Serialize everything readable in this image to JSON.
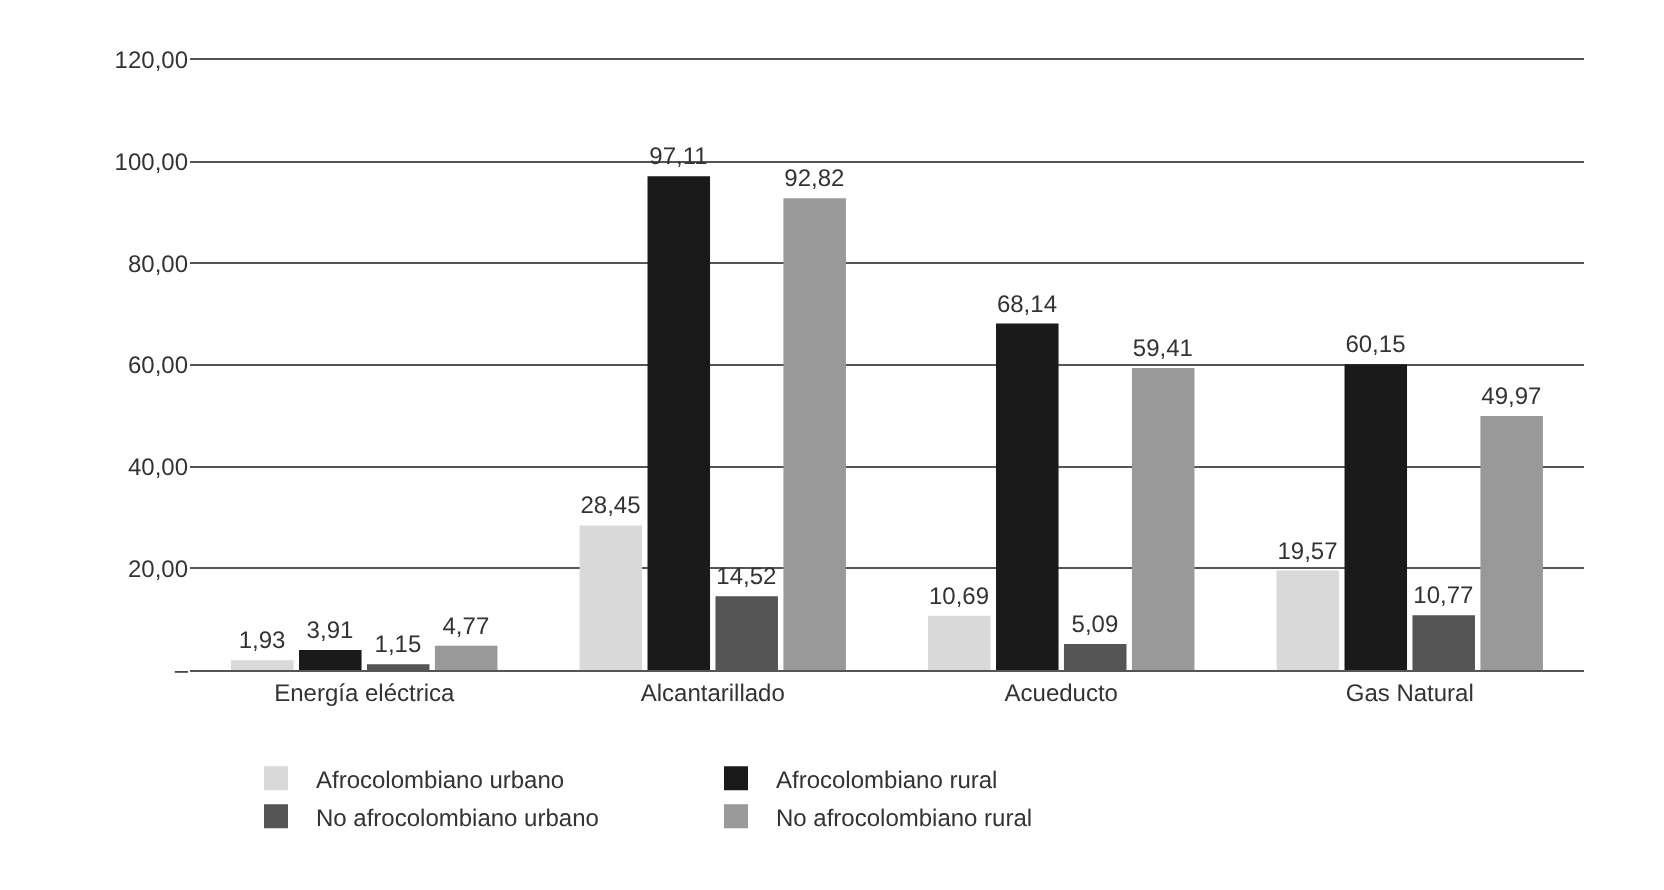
{
  "chart_data": {
    "type": "bar",
    "categories": [
      "Energía eléctrica",
      "Alcantarillado",
      "Acueducto",
      "Gas Natural"
    ],
    "series": [
      {
        "name": "Afrocolombiano urbano",
        "color": "#d9d9d9",
        "values": [
          1.93,
          28.45,
          10.69,
          19.57
        ],
        "value_labels": [
          "1,93",
          "28,45",
          "10,69",
          "19,57"
        ]
      },
      {
        "name": "Afrocolombiano rural",
        "color": "#1a1a1a",
        "values": [
          3.91,
          97.11,
          68.14,
          60.15
        ],
        "value_labels": [
          "3,91",
          "97,11",
          "68,14",
          "60,15"
        ]
      },
      {
        "name": "No afrocolombiano urbano",
        "color": "#555555",
        "values": [
          1.15,
          14.52,
          5.09,
          10.77
        ],
        "value_labels": [
          "1,15",
          "14,52",
          "5,09",
          "10,77"
        ]
      },
      {
        "name": "No afrocolombiano rural",
        "color": "#999999",
        "values": [
          4.77,
          92.82,
          59.41,
          49.97
        ],
        "value_labels": [
          "4,77",
          "92,82",
          "59,41",
          "49,97"
        ]
      }
    ],
    "ylim": [
      0,
      120
    ],
    "yticks": [
      {
        "value": 0,
        "label": "–"
      },
      {
        "value": 20,
        "label": "20,00"
      },
      {
        "value": 40,
        "label": "40,00"
      },
      {
        "value": 60,
        "label": "60,00"
      },
      {
        "value": 80,
        "label": "80,00"
      },
      {
        "value": 100,
        "label": "100,00"
      },
      {
        "value": 120,
        "label": "120,00"
      }
    ],
    "grid": "y",
    "legend": "bottom"
  }
}
